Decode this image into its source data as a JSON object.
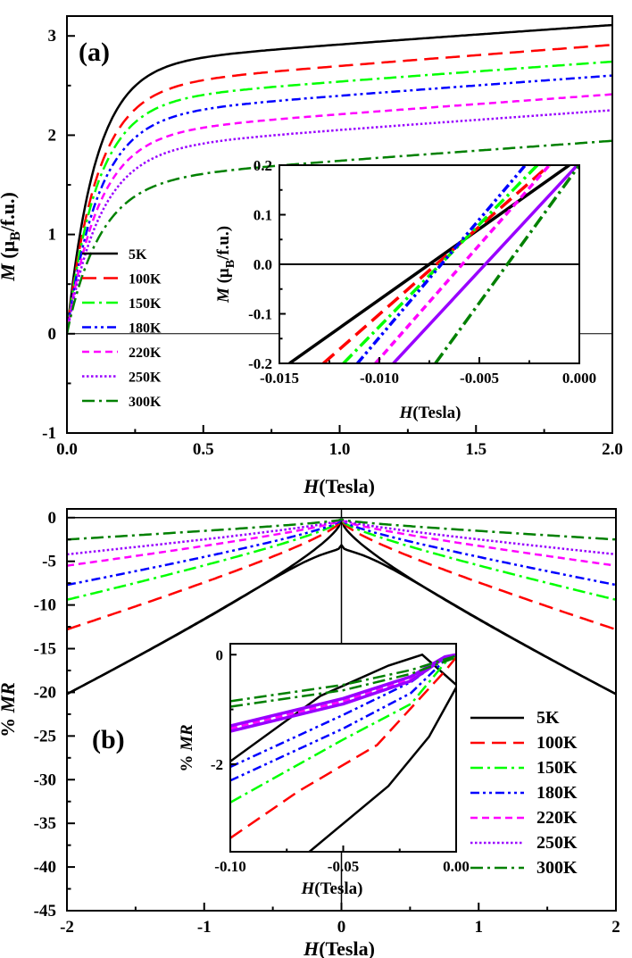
{
  "chart_data": [
    {
      "id": "a",
      "type": "line",
      "panel_label": "(a)",
      "xlabel": {
        "italic": "H",
        "rest": "(Tesla)"
      },
      "ylabel": {
        "italic": "M",
        "rest": " (μ",
        "sub": "B",
        "tail": "/f.u.)"
      },
      "xlim": [
        0,
        2
      ],
      "ylim": [
        -1,
        3.2
      ],
      "xticks": [
        0,
        0.5,
        1,
        1.5,
        2
      ],
      "xtick_labels": [
        "0.0",
        "0.5",
        "1.0",
        "1.5",
        "2.0"
      ],
      "yticks": [
        -1,
        0,
        1,
        2,
        3
      ],
      "ytick_labels": [
        "-1",
        "0",
        "1",
        "2",
        "3"
      ],
      "legend_position": "lower-left",
      "series": [
        {
          "name": "5K",
          "color": "#000000",
          "dash": "solid",
          "Ms": 3.12,
          "Hs": 0.095,
          "slope": 0.12
        },
        {
          "name": "100K",
          "color": "#ff0000",
          "dash": "dash",
          "Ms": 2.92,
          "Hs": 0.1,
          "slope": 0.14
        },
        {
          "name": "150K",
          "color": "#00ff00",
          "dash": "dashdot",
          "Ms": 2.75,
          "Hs": 0.1,
          "slope": 0.14
        },
        {
          "name": "180K",
          "color": "#0000ff",
          "dash": "dashdotdot",
          "Ms": 2.61,
          "Hs": 0.105,
          "slope": 0.15
        },
        {
          "name": "220K",
          "color": "#ff00ff",
          "dash": "shortdash",
          "Ms": 2.42,
          "Hs": 0.105,
          "slope": 0.16
        },
        {
          "name": "250K",
          "color": "#9900ff",
          "dash": "dot",
          "Ms": 2.26,
          "Hs": 0.11,
          "slope": 0.17
        },
        {
          "name": "300K",
          "color": "#008000",
          "dash": "dashdot",
          "Ms": 1.95,
          "Hs": 0.11,
          "slope": 0.2
        }
      ],
      "inset": {
        "xlabel": {
          "italic": "H",
          "rest": "(Tesla)"
        },
        "ylabel": {
          "italic": "M",
          "rest": " (μ",
          "sub": "B",
          "tail": "/f.u.)"
        },
        "xlim": [
          -0.015,
          0.0
        ],
        "ylim": [
          -0.2,
          0.2
        ],
        "xticks": [
          -0.015,
          -0.01,
          -0.005,
          0.0
        ],
        "xtick_labels": [
          "-0.015",
          "-0.010",
          "-0.005",
          "0.000"
        ],
        "yticks": [
          -0.2,
          -0.1,
          0.0,
          0.1,
          0.2
        ],
        "ytick_labels": [
          "-0.2",
          "-0.1",
          "0.0",
          "0.1",
          "0.2"
        ],
        "zero_line": true,
        "lines": [
          {
            "name": "5K",
            "x0": -0.0145,
            "x1": -0.0005
          },
          {
            "name": "100K",
            "x0": -0.0128,
            "x1": -0.0015
          },
          {
            "name": "150K",
            "x0": -0.0118,
            "x1": -0.0021
          },
          {
            "name": "180K",
            "x0": -0.0111,
            "x1": -0.0027
          },
          {
            "name": "220K",
            "x0": -0.0102,
            "x1": -0.0015
          },
          {
            "name": "250K",
            "x0": -0.0093,
            "x1": -0.0001
          },
          {
            "name": "300K",
            "x0": -0.0072,
            "x1": 0.0
          }
        ]
      }
    },
    {
      "id": "b",
      "type": "line",
      "panel_label": "(b)",
      "xlabel": {
        "italic": "H",
        "rest": "(Tesla)"
      },
      "ylabel": {
        "pct": "% ",
        "italic": "MR"
      },
      "xlim": [
        -2,
        2
      ],
      "ylim": [
        -45,
        1
      ],
      "xticks": [
        -2,
        -1,
        0,
        1,
        2
      ],
      "xtick_labels": [
        "-2",
        "-1",
        "0",
        "1",
        "2"
      ],
      "yticks": [
        0,
        -5,
        -10,
        -15,
        -20,
        -25,
        -30,
        -35,
        -40,
        -45
      ],
      "ytick_labels": [
        "0",
        "-5",
        "-10",
        "-15",
        "-20",
        "-25",
        "-30",
        "-35",
        "-40",
        "-45"
      ],
      "legend_position": "right",
      "series": [
        {
          "name": "5K",
          "color": "#000000",
          "dash": "solid",
          "mr_at_2T": -20.0
        },
        {
          "name": "100K",
          "color": "#ff0000",
          "dash": "dash",
          "mr_at_2T": -12.6
        },
        {
          "name": "150K",
          "color": "#00ff00",
          "dash": "dashdot",
          "mr_at_2T": -9.2
        },
        {
          "name": "180K",
          "color": "#0000ff",
          "dash": "dashdotdot",
          "mr_at_2T": -7.5
        },
        {
          "name": "220K",
          "color": "#ff00ff",
          "dash": "shortdash",
          "mr_at_2T": -5.3
        },
        {
          "name": "250K",
          "color": "#9900ff",
          "dash": "dot",
          "mr_at_2T": -4.0
        },
        {
          "name": "300K",
          "color": "#008000",
          "dash": "dashdot",
          "mr_at_2T": -2.3
        }
      ],
      "inset": {
        "xlabel": {
          "italic": "H",
          "rest": "(Tesla)"
        },
        "ylabel": {
          "pct": "% ",
          "italic": "MR"
        },
        "xlim": [
          -0.1,
          0.0
        ],
        "ylim": [
          -3.6,
          0.2
        ],
        "xticks": [
          -0.1,
          -0.05,
          0.0
        ],
        "xtick_labels": [
          "-0.10",
          "-0.05",
          "0.00"
        ],
        "yticks": [
          0,
          -2
        ],
        "ytick_labels": [
          "0",
          "-2"
        ],
        "lines": [
          {
            "name": "5K",
            "pts": [
              [
                -0.1,
                -1.95
              ],
              [
                -0.06,
                -0.75
              ],
              [
                -0.03,
                -0.2
              ],
              [
                -0.015,
                0.0
              ],
              [
                0.0,
                -0.55
              ]
            ]
          },
          {
            "name": "5K",
            "pts": [
              [
                -0.065,
                -3.6
              ],
              [
                -0.03,
                -2.4
              ],
              [
                -0.012,
                -1.5
              ],
              [
                0.0,
                -0.6
              ]
            ]
          },
          {
            "name": "100K",
            "pts": [
              [
                -0.1,
                -3.35
              ],
              [
                -0.07,
                -2.5
              ],
              [
                -0.035,
                -1.65
              ],
              [
                -0.005,
                -0.3
              ],
              [
                0.0,
                -0.05
              ]
            ]
          },
          {
            "name": "150K",
            "pts": [
              [
                -0.1,
                -2.7
              ],
              [
                -0.05,
                -1.55
              ],
              [
                -0.02,
                -0.9
              ],
              [
                -0.005,
                -0.15
              ],
              [
                0.0,
                0.0
              ]
            ]
          },
          {
            "name": "180K",
            "pts": [
              [
                -0.1,
                -2.3
              ],
              [
                -0.05,
                -1.35
              ],
              [
                -0.02,
                -0.7
              ],
              [
                -0.005,
                -0.1
              ],
              [
                0.0,
                0.0
              ]
            ]
          },
          {
            "name": "180K",
            "pts": [
              [
                -0.1,
                -2.05
              ],
              [
                -0.05,
                -1.1
              ],
              [
                -0.02,
                -0.5
              ],
              [
                -0.005,
                -0.05
              ],
              [
                0.0,
                0.0
              ]
            ]
          },
          {
            "name": "220K",
            "pts": [
              [
                -0.1,
                -1.35
              ],
              [
                -0.05,
                -0.85
              ],
              [
                -0.02,
                -0.45
              ],
              [
                -0.005,
                -0.05
              ],
              [
                0.0,
                0.0
              ]
            ]
          },
          {
            "name": "250K",
            "pts": [
              [
                -0.1,
                -1.4
              ],
              [
                -0.05,
                -0.9
              ],
              [
                -0.02,
                -0.48
              ],
              [
                -0.005,
                -0.05
              ],
              [
                0.0,
                0.0
              ]
            ]
          },
          {
            "name": "250K",
            "pts": [
              [
                -0.1,
                -1.3
              ],
              [
                -0.05,
                -0.8
              ],
              [
                -0.02,
                -0.4
              ],
              [
                -0.005,
                -0.04
              ],
              [
                0.0,
                0.0
              ]
            ]
          },
          {
            "name": "300K",
            "pts": [
              [
                -0.1,
                -0.95
              ],
              [
                -0.05,
                -0.65
              ],
              [
                -0.02,
                -0.35
              ],
              [
                0.0,
                -0.05
              ]
            ]
          },
          {
            "name": "300K",
            "pts": [
              [
                -0.1,
                -0.85
              ],
              [
                -0.05,
                -0.55
              ],
              [
                -0.02,
                -0.28
              ],
              [
                0.0,
                -0.02
              ]
            ]
          }
        ]
      }
    }
  ]
}
